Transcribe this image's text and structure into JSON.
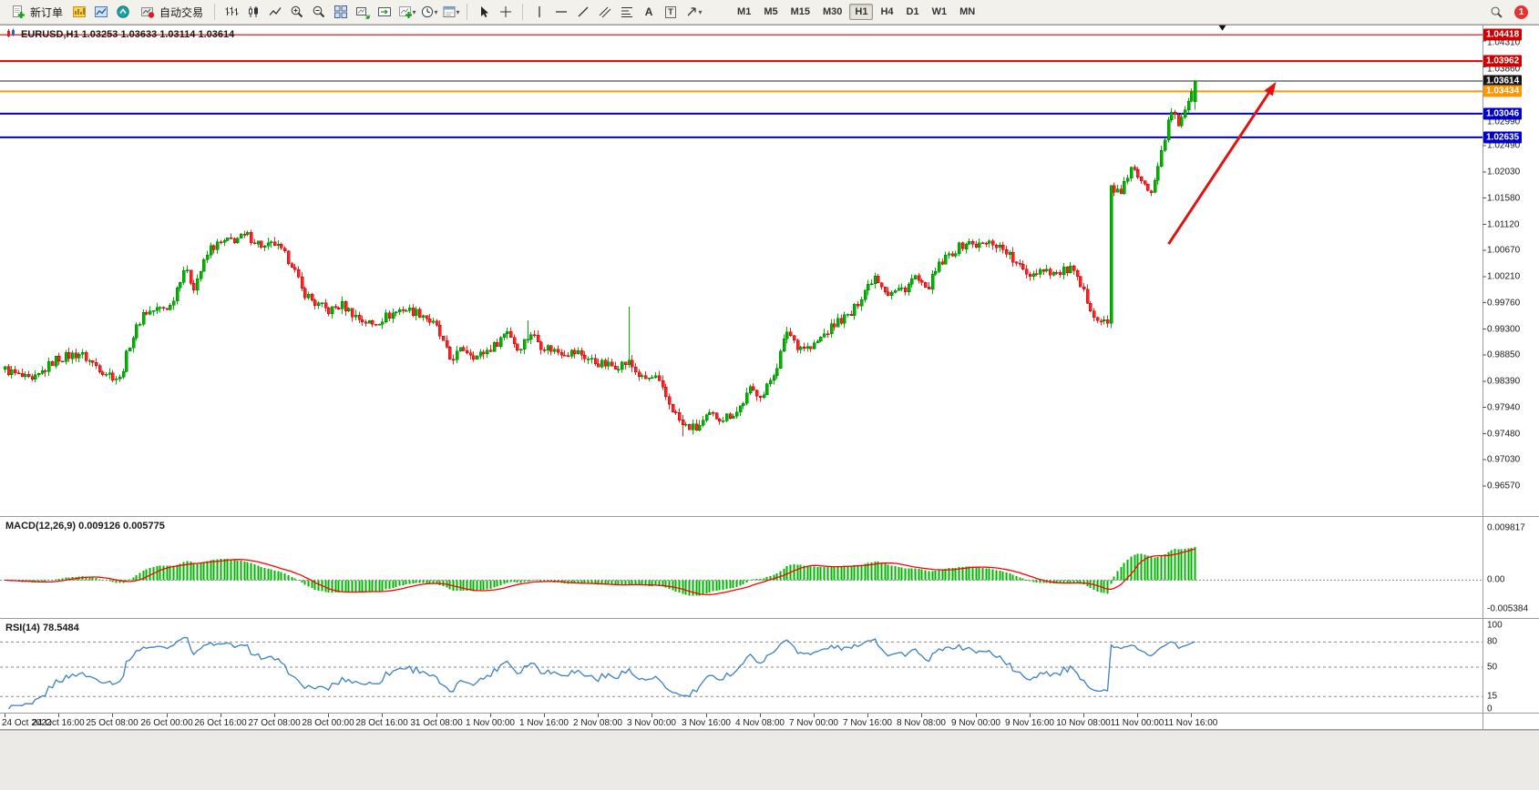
{
  "toolbar": {
    "new_order_label": "新订单",
    "autotrading_label": "自动交易",
    "timeframes": [
      "M1",
      "M5",
      "M15",
      "M30",
      "H1",
      "H4",
      "D1",
      "W1",
      "MN"
    ],
    "selected_timeframe": "H1",
    "notification_count": "1"
  },
  "chart": {
    "title": "EURUSD,H1 1.03253 1.03633 1.03114 1.03614",
    "symbol": "EURUSD",
    "period": "H1"
  },
  "price_axis": {
    "labels": [
      "1.04310",
      "1.03860",
      "1.02990",
      "1.02490",
      "1.02030",
      "1.01580",
      "1.01120",
      "1.00670",
      "1.00210",
      "0.99760",
      "0.99300",
      "0.98850",
      "0.98390",
      "0.97940",
      "0.97480",
      "0.97030",
      "0.96570"
    ],
    "tags": [
      {
        "text": "1.04418",
        "bg": "#cf0000"
      },
      {
        "text": "1.03962",
        "bg": "#cf0000"
      },
      {
        "text": "1.03614",
        "bg": "#151515"
      },
      {
        "text": "1.03434",
        "bg": "#ff9500"
      },
      {
        "text": "1.03046",
        "bg": "#0000cd"
      },
      {
        "text": "1.02635",
        "bg": "#0000cd"
      }
    ]
  },
  "macd_panel": {
    "label": "MACD(12,26,9) 0.009126 0.005775",
    "axis_labels": [
      "0.009817",
      "0.00",
      "-0.005384"
    ]
  },
  "rsi_panel": {
    "label": "RSI(14) 78.5484",
    "axis_labels": [
      "100",
      "80",
      "50",
      "15",
      "0"
    ]
  },
  "time_axis": [
    "24 Oct 2022",
    "24 Oct 16:00",
    "25 Oct 08:00",
    "26 Oct 00:00",
    "26 Oct 16:00",
    "27 Oct 08:00",
    "28 Oct 00:00",
    "28 Oct 16:00",
    "31 Oct 08:00",
    "1 Nov 00:00",
    "1 Nov 16:00",
    "2 Nov 08:00",
    "3 Nov 00:00",
    "3 Nov 16:00",
    "4 Nov 08:00",
    "7 Nov 00:00",
    "7 Nov 16:00",
    "8 Nov 08:00",
    "9 Nov 00:00",
    "9 Nov 16:00",
    "10 Nov 08:00",
    "11 Nov 00:00",
    "11 Nov 16:00"
  ],
  "chart_data": {
    "type": "candlestick",
    "symbol": "EURUSD",
    "timeframe": "H1",
    "bars": 354,
    "bars_per_x_label": 16,
    "current_bar": {
      "open": 1.03253,
      "high": 1.03633,
      "low": 1.03114,
      "close": 1.03614
    },
    "price_range": {
      "top": 1.0458,
      "bottom": 0.9605
    },
    "up_color": "#00b500",
    "down_color": "#ff2222",
    "price_path_anchors": [
      [
        0,
        0.986
      ],
      [
        8,
        0.9838
      ],
      [
        15,
        0.9878
      ],
      [
        22,
        0.9888
      ],
      [
        29,
        0.9858
      ],
      [
        34,
        0.9843
      ],
      [
        37,
        0.9905
      ],
      [
        41,
        0.9958
      ],
      [
        49,
        0.997
      ],
      [
        53,
        1.0035
      ],
      [
        56,
        1.0005
      ],
      [
        61,
        1.0072
      ],
      [
        67,
        1.0085
      ],
      [
        72,
        1.0092
      ],
      [
        77,
        1.0072
      ],
      [
        80,
        1.0078
      ],
      [
        85,
        1.0045
      ],
      [
        88,
        0.9998
      ],
      [
        92,
        0.9975
      ],
      [
        96,
        0.9962
      ],
      [
        100,
        0.9972
      ],
      [
        105,
        0.9948
      ],
      [
        109,
        0.9938
      ],
      [
        113,
        0.9952
      ],
      [
        118,
        0.9966
      ],
      [
        124,
        0.9956
      ],
      [
        128,
        0.9932
      ],
      [
        132,
        0.9878
      ],
      [
        136,
        0.9896
      ],
      [
        140,
        0.9882
      ],
      [
        145,
        0.9901
      ],
      [
        149,
        0.9929
      ],
      [
        152,
        0.9896
      ],
      [
        156,
        0.9923
      ],
      [
        159,
        0.9902
      ],
      [
        164,
        0.9891
      ],
      [
        170,
        0.9889
      ],
      [
        175,
        0.9872
      ],
      [
        180,
        0.9866
      ],
      [
        185,
        0.9872
      ],
      [
        189,
        0.9843
      ],
      [
        193,
        0.9845
      ],
      [
        197,
        0.9801
      ],
      [
        201,
        0.9762
      ],
      [
        205,
        0.9757
      ],
      [
        209,
        0.978
      ],
      [
        213,
        0.9776
      ],
      [
        217,
        0.9786
      ],
      [
        221,
        0.9824
      ],
      [
        225,
        0.9816
      ],
      [
        229,
        0.9868
      ],
      [
        232,
        0.9928
      ],
      [
        235,
        0.9902
      ],
      [
        239,
        0.9896
      ],
      [
        243,
        0.9921
      ],
      [
        247,
        0.9944
      ],
      [
        251,
        0.9955
      ],
      [
        255,
        0.9999
      ],
      [
        258,
        1.0024
      ],
      [
        262,
        0.9992
      ],
      [
        267,
        1.0002
      ],
      [
        270,
        1.0021
      ],
      [
        273,
        0.9996
      ],
      [
        277,
        1.004
      ],
      [
        281,
        1.0064
      ],
      [
        285,
        1.008
      ],
      [
        289,
        1.0076
      ],
      [
        293,
        1.0081
      ],
      [
        297,
        1.0066
      ],
      [
        300,
        1.0041
      ],
      [
        304,
        1.0026
      ],
      [
        308,
        1.0036
      ],
      [
        312,
        1.0026
      ],
      [
        316,
        1.0036
      ],
      [
        320,
        0.9992
      ],
      [
        324,
        0.9947
      ],
      [
        327,
        0.994
      ],
      [
        328,
        1.018
      ],
      [
        331,
        1.0162
      ],
      [
        334,
        1.0214
      ],
      [
        337,
        1.0182
      ],
      [
        340,
        1.0172
      ],
      [
        343,
        1.0244
      ],
      [
        346,
        1.0308
      ],
      [
        348,
        1.0286
      ],
      [
        351,
        1.033
      ],
      [
        353,
        1.0361
      ]
    ],
    "spikes": {
      "155": 0.0025,
      "185": 0.0085
    },
    "low_spikes": {
      "201": 0.0012
    },
    "horizontal_lines": [
      {
        "price": 1.04418,
        "color": "#e00000",
        "width": 1.2
      },
      {
        "price": 1.03962,
        "color": "#e00000",
        "width": 2
      },
      {
        "price": 1.03614,
        "color": "#202020",
        "width": 1
      },
      {
        "price": 1.03434,
        "color": "#ff9500",
        "width": 2
      },
      {
        "price": 1.03046,
        "color": "#0000cd",
        "width": 2
      },
      {
        "price": 1.02635,
        "color": "#0000cd",
        "width": 2
      }
    ],
    "objects": [
      {
        "type": "trend-arrow",
        "color": "#e01212",
        "from": {
          "bar": 345,
          "price": 1.0078
        },
        "to": {
          "bar": 377,
          "price": 1.036
        }
      },
      {
        "type": "marker-arrow-down",
        "color": "#111111",
        "bar": 361,
        "price": 1.0449
      }
    ],
    "indicators": [
      {
        "name": "MACD",
        "params": [
          12,
          26,
          9
        ],
        "values": [
          0.009126,
          0.005775
        ],
        "axis": {
          "max": 0.009817,
          "zero": 0.0,
          "min": -0.005384
        },
        "histogram_color": "#00b500",
        "signal_color": "#ff0000"
      },
      {
        "name": "RSI",
        "params": [
          14
        ],
        "value": 78.5484,
        "scale": [
          0,
          100
        ],
        "levels": [
          80,
          50,
          15
        ],
        "line_color": "#3b7fc4"
      }
    ]
  }
}
